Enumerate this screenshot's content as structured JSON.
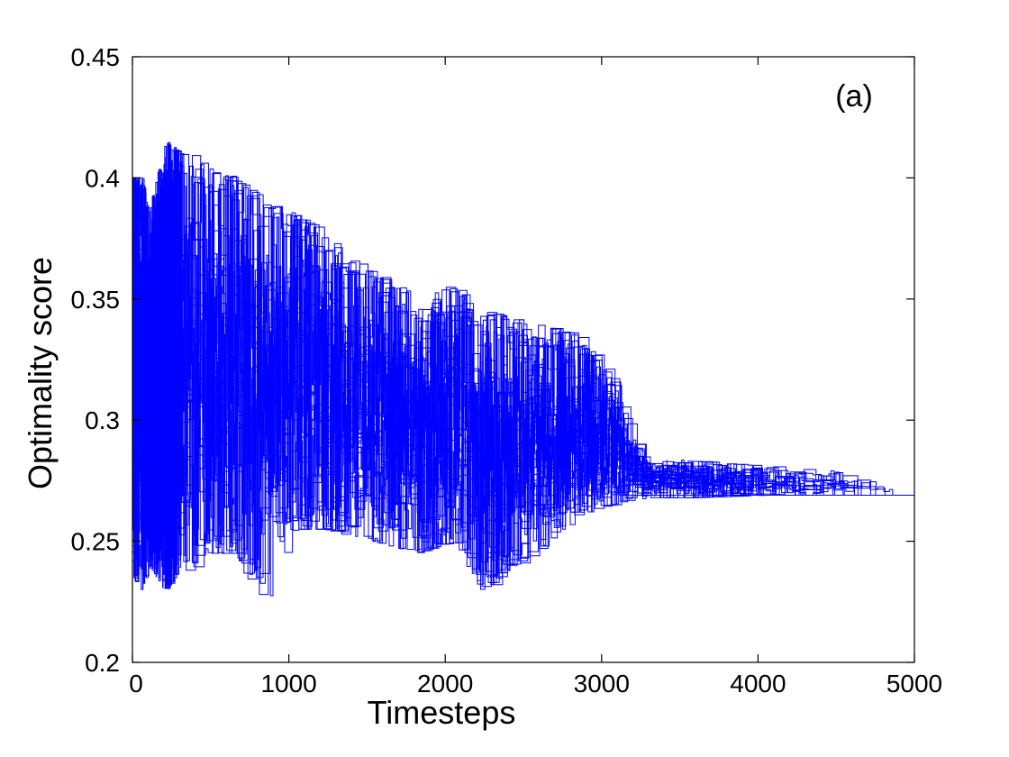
{
  "chart_data": {
    "type": "line",
    "title": "",
    "xlabel": "Timesteps",
    "ylabel": "Optimality score",
    "annotation": "(a)",
    "xlim": [
      0,
      5000
    ],
    "ylim": [
      0.2,
      0.45
    ],
    "x_ticks": [
      0,
      1000,
      2000,
      3000,
      4000,
      5000
    ],
    "x_tick_labels": [
      "0",
      "1000",
      "2000",
      "3000",
      "4000",
      "5000"
    ],
    "y_ticks": [
      0.2,
      0.25,
      0.3,
      0.35,
      0.4,
      0.45
    ],
    "y_tick_labels": [
      "0.2",
      "0.25",
      "0.3",
      "0.35",
      "0.4",
      "0.45"
    ],
    "grid": false,
    "legend": "none",
    "line_color": "#0000ff",
    "series_style": "step",
    "series_count": 40,
    "envelope": {
      "x": [
        0,
        50,
        100,
        200,
        400,
        600,
        800,
        1000,
        1200,
        1500,
        1800,
        2000,
        2200,
        2500,
        2800,
        3000,
        3200,
        3500,
        4000,
        4500,
        4900,
        5000
      ],
      "upper": [
        0.4,
        0.4,
        0.385,
        0.415,
        0.405,
        0.4,
        0.39,
        0.385,
        0.375,
        0.36,
        0.35,
        0.355,
        0.345,
        0.34,
        0.335,
        0.32,
        0.285,
        0.283,
        0.281,
        0.279,
        0.269,
        0.269
      ],
      "lower": [
        0.235,
        0.23,
        0.24,
        0.23,
        0.245,
        0.245,
        0.225,
        0.255,
        0.255,
        0.25,
        0.245,
        0.25,
        0.23,
        0.245,
        0.26,
        0.265,
        0.268,
        0.268,
        0.269,
        0.269,
        0.269,
        0.269
      ]
    },
    "converged_value": 0.269,
    "convergence_end_x": 4900
  }
}
